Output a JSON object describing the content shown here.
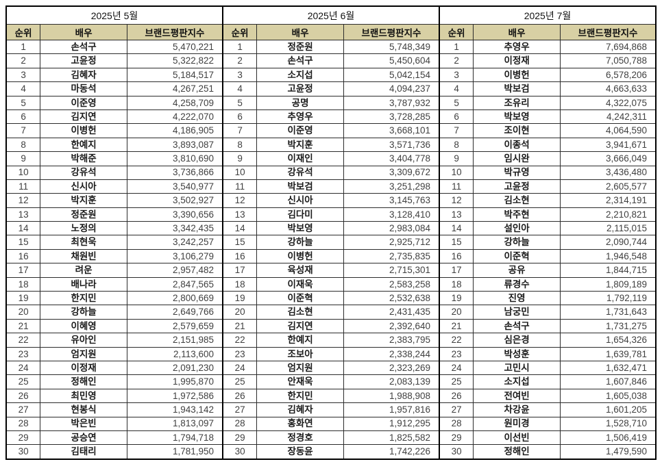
{
  "colors": {
    "header_bg": "#d8d0a4",
    "border": "#000000",
    "grid_line": "#2b2b2b",
    "actor_text": "#1a1a1a",
    "number_text": "#3f3f3f"
  },
  "table": {
    "columns": [
      "순위",
      "배우",
      "브랜드평판지수"
    ],
    "months": [
      {
        "title": "2025년 5월",
        "rows": [
          [
            "1",
            "손석구",
            "5,470,221"
          ],
          [
            "2",
            "고윤정",
            "5,322,822"
          ],
          [
            "3",
            "김혜자",
            "5,184,517"
          ],
          [
            "4",
            "마동석",
            "4,267,251"
          ],
          [
            "5",
            "이준영",
            "4,258,709"
          ],
          [
            "6",
            "김지연",
            "4,222,070"
          ],
          [
            "7",
            "이병헌",
            "4,186,905"
          ],
          [
            "8",
            "한예지",
            "3,893,087"
          ],
          [
            "9",
            "박해준",
            "3,810,690"
          ],
          [
            "10",
            "강유석",
            "3,736,866"
          ],
          [
            "11",
            "신시아",
            "3,540,977"
          ],
          [
            "12",
            "박지훈",
            "3,502,927"
          ],
          [
            "13",
            "정준원",
            "3,390,656"
          ],
          [
            "14",
            "노정의",
            "3,342,435"
          ],
          [
            "15",
            "최현욱",
            "3,242,257"
          ],
          [
            "16",
            "채원빈",
            "3,106,279"
          ],
          [
            "17",
            "려운",
            "2,957,482"
          ],
          [
            "18",
            "배나라",
            "2,847,565"
          ],
          [
            "19",
            "한지민",
            "2,800,669"
          ],
          [
            "20",
            "강하늘",
            "2,649,766"
          ],
          [
            "21",
            "이혜영",
            "2,579,659"
          ],
          [
            "22",
            "유아인",
            "2,151,985"
          ],
          [
            "23",
            "엄지원",
            "2,113,600"
          ],
          [
            "24",
            "이정재",
            "2,091,230"
          ],
          [
            "25",
            "정해인",
            "1,995,870"
          ],
          [
            "26",
            "최민영",
            "1,972,586"
          ],
          [
            "27",
            "현봉식",
            "1,943,142"
          ],
          [
            "28",
            "박은빈",
            "1,813,097"
          ],
          [
            "29",
            "공승연",
            "1,794,718"
          ],
          [
            "30",
            "김태리",
            "1,781,950"
          ]
        ]
      },
      {
        "title": "2025년 6월",
        "rows": [
          [
            "1",
            "정준원",
            "5,748,349"
          ],
          [
            "2",
            "손석구",
            "5,450,604"
          ],
          [
            "3",
            "소지섭",
            "5,042,154"
          ],
          [
            "4",
            "고윤정",
            "4,094,237"
          ],
          [
            "5",
            "공명",
            "3,787,932"
          ],
          [
            "6",
            "추영우",
            "3,728,285"
          ],
          [
            "7",
            "이준영",
            "3,668,101"
          ],
          [
            "8",
            "박지훈",
            "3,571,736"
          ],
          [
            "9",
            "이재인",
            "3,404,778"
          ],
          [
            "10",
            "강유석",
            "3,309,672"
          ],
          [
            "11",
            "박보검",
            "3,251,298"
          ],
          [
            "12",
            "신시아",
            "3,145,763"
          ],
          [
            "13",
            "김다미",
            "3,128,410"
          ],
          [
            "14",
            "박보영",
            "2,983,084"
          ],
          [
            "15",
            "강하늘",
            "2,925,712"
          ],
          [
            "16",
            "이병헌",
            "2,735,835"
          ],
          [
            "17",
            "육성재",
            "2,715,301"
          ],
          [
            "18",
            "이재욱",
            "2,583,258"
          ],
          [
            "19",
            "이준혁",
            "2,532,638"
          ],
          [
            "20",
            "김소현",
            "2,431,435"
          ],
          [
            "21",
            "김지연",
            "2,392,640"
          ],
          [
            "22",
            "한예지",
            "2,383,795"
          ],
          [
            "23",
            "조보아",
            "2,338,244"
          ],
          [
            "24",
            "엄지원",
            "2,323,269"
          ],
          [
            "25",
            "안재욱",
            "2,083,139"
          ],
          [
            "26",
            "한지민",
            "1,988,908"
          ],
          [
            "27",
            "김혜자",
            "1,957,816"
          ],
          [
            "28",
            "홍화연",
            "1,912,295"
          ],
          [
            "29",
            "정경호",
            "1,825,582"
          ],
          [
            "30",
            "장동윤",
            "1,742,226"
          ]
        ]
      },
      {
        "title": "2025년 7월",
        "rows": [
          [
            "1",
            "추영우",
            "7,694,868"
          ],
          [
            "2",
            "이정재",
            "7,050,788"
          ],
          [
            "3",
            "이병헌",
            "6,578,206"
          ],
          [
            "4",
            "박보검",
            "4,663,633"
          ],
          [
            "5",
            "조유리",
            "4,322,075"
          ],
          [
            "6",
            "박보영",
            "4,242,311"
          ],
          [
            "7",
            "조이현",
            "4,064,590"
          ],
          [
            "8",
            "이종석",
            "3,941,671"
          ],
          [
            "9",
            "임시완",
            "3,666,049"
          ],
          [
            "10",
            "박규영",
            "3,436,480"
          ],
          [
            "11",
            "고윤정",
            "2,605,577"
          ],
          [
            "12",
            "김소현",
            "2,314,191"
          ],
          [
            "13",
            "박주현",
            "2,210,821"
          ],
          [
            "14",
            "설인아",
            "2,115,015"
          ],
          [
            "15",
            "강하늘",
            "2,090,744"
          ],
          [
            "16",
            "이준혁",
            "1,946,548"
          ],
          [
            "17",
            "공유",
            "1,844,715"
          ],
          [
            "18",
            "류경수",
            "1,809,189"
          ],
          [
            "19",
            "진영",
            "1,792,119"
          ],
          [
            "20",
            "남궁민",
            "1,731,643"
          ],
          [
            "21",
            "손석구",
            "1,731,275"
          ],
          [
            "22",
            "심은경",
            "1,654,326"
          ],
          [
            "23",
            "박성훈",
            "1,639,781"
          ],
          [
            "24",
            "고민시",
            "1,632,471"
          ],
          [
            "25",
            "소지섭",
            "1,607,846"
          ],
          [
            "26",
            "전여빈",
            "1,605,038"
          ],
          [
            "27",
            "차강윤",
            "1,601,205"
          ],
          [
            "28",
            "원미경",
            "1,528,710"
          ],
          [
            "29",
            "이선빈",
            "1,506,419"
          ],
          [
            "30",
            "정해인",
            "1,479,590"
          ]
        ]
      }
    ]
  }
}
